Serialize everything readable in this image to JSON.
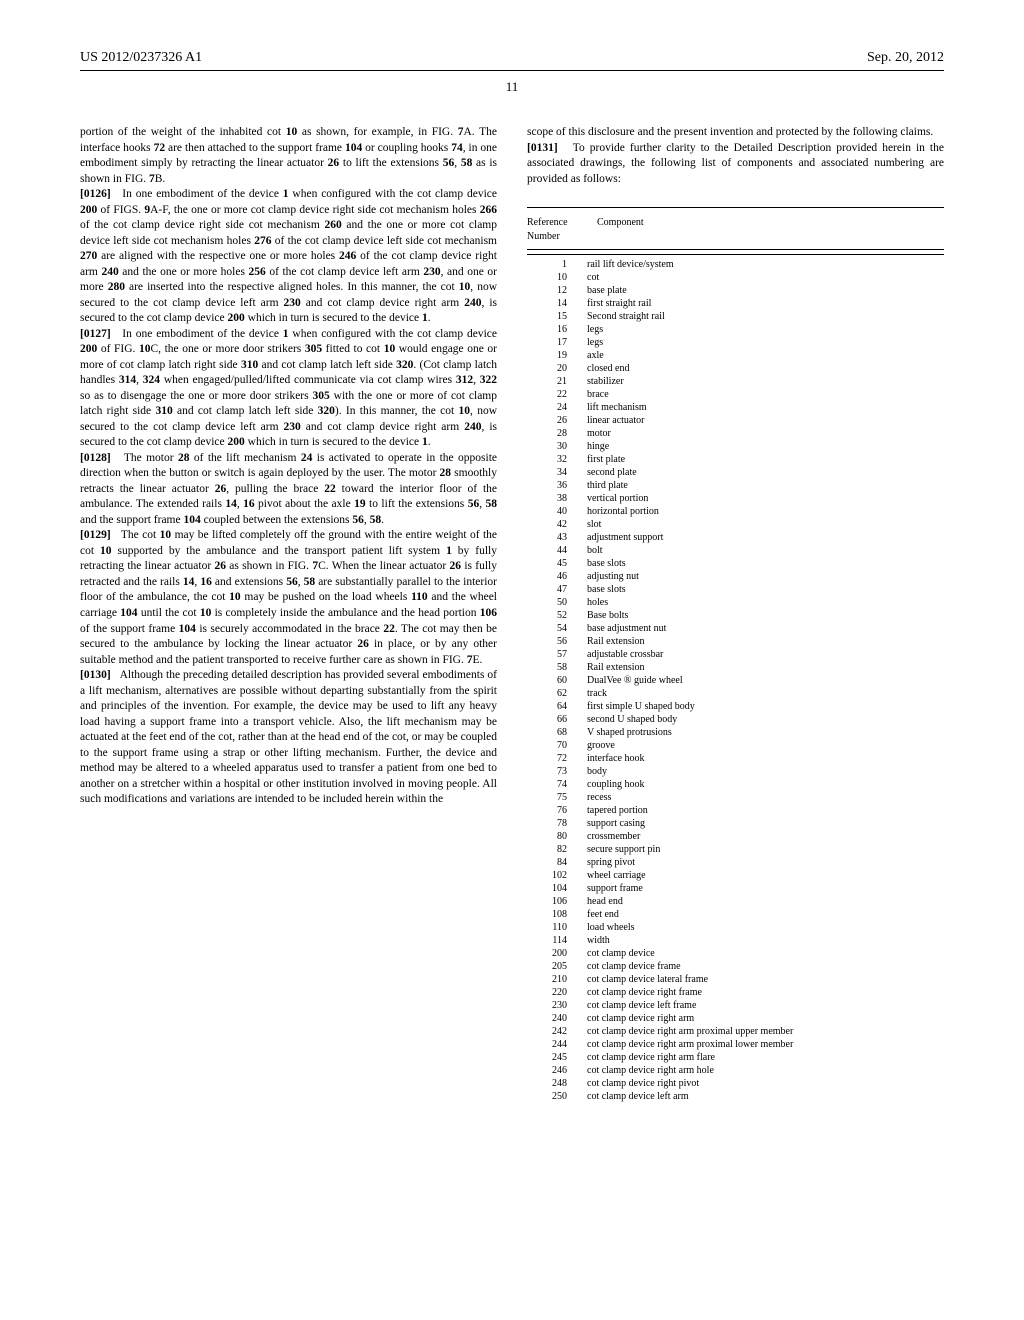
{
  "header": {
    "left": "US 2012/0237326 A1",
    "right": "Sep. 20, 2012"
  },
  "pageNumber": "11",
  "leftColumn": {
    "para0": "portion of the weight of the inhabited cot <b>10</b> as shown, for example, in FIG. <b>7</b>A. The interface hooks <b>72</b> are then attached to the support frame <b>104</b> or coupling hooks <b>74</b>, in one embodiment simply by retracting the linear actuator <b>26</b> to lift the extensions <b>56</b>, <b>58</b> as is shown in FIG. <b>7</b>B.",
    "para1": "<b>[0126]</b>&nbsp;&nbsp;&nbsp;In one embodiment of the device <b>1</b> when configured with the cot clamp device <b>200</b> of FIGS. <b>9</b>A-F, the one or more cot clamp device right side cot mechanism holes <b>266</b> of the cot clamp device right side cot mechanism <b>260</b> and the one or more cot clamp device left side cot mechanism holes <b>276</b> of the cot clamp device left side cot mechanism <b>270</b> are aligned with the respective one or more holes <b>246</b> of the cot clamp device right arm <b>240</b> and the one or more holes <b>256</b> of the cot clamp device left arm <b>230</b>, and one or more <b>280</b> are inserted into the respective aligned holes. In this manner, the cot <b>10</b>, now secured to the cot clamp device left arm <b>230</b> and cot clamp device right arm <b>240</b>, is secured to the cot clamp device <b>200</b> which in turn is secured to the device <b>1</b>.",
    "para2": "<b>[0127]</b>&nbsp;&nbsp;&nbsp;In one embodiment of the device <b>1</b> when configured with the cot clamp device <b>200</b> of FIG. <b>10</b>C, the one or more door strikers <b>305</b> fitted to cot <b>10</b> would engage one or more of cot clamp latch right side <b>310</b> and cot clamp latch left side <b>320</b>. (Cot clamp latch handles <b>314</b>, <b>324</b> when engaged/pulled/lifted communicate via cot clamp wires <b>312</b>, <b>322</b> so as to disengage the one or more door strikers <b>305</b> with the one or more of cot clamp latch right side <b>310</b> and cot clamp latch left side <b>320</b>). In this manner, the cot <b>10</b>, now secured to the cot clamp device left arm <b>230</b> and cot clamp device right arm <b>240</b>, is secured to the cot clamp device <b>200</b> which in turn is secured to the device <b>1</b>.",
    "para3": "<b>[0128]</b>&nbsp;&nbsp;&nbsp;The motor <b>28</b> of the lift mechanism <b>24</b> is activated to operate in the opposite direction when the button or switch is again deployed by the user. The motor <b>28</b> smoothly retracts the linear actuator <b>26</b>, pulling the brace <b>22</b> toward the interior floor of the ambulance. The extended rails <b>14</b>, <b>16</b> pivot about the axle <b>19</b> to lift the extensions <b>56</b>, <b>58</b> and the support frame <b>104</b> coupled between the extensions <b>56</b>, <b>58</b>.",
    "para4": "<b>[0129]</b>&nbsp;&nbsp;&nbsp;The cot <b>10</b> may be lifted completely off the ground with the entire weight of the cot <b>10</b> supported by the ambulance and the transport patient lift system <b>1</b> by fully retracting the linear actuator <b>26</b> as shown in FIG. <b>7</b>C. When the linear actuator <b>26</b> is fully retracted and the rails <b>14</b>, <b>16</b> and extensions <b>56</b>, <b>58</b> are substantially parallel to the interior floor of the ambulance, the cot <b>10</b> may be pushed on the load wheels <b>110</b> and the wheel carriage <b>104</b> until the cot <b>10</b> is completely inside the ambulance and the head portion <b>106</b> of the support frame <b>104</b> is securely accommodated in the brace <b>22</b>. The cot may then be secured to the ambulance by locking the linear actuator <b>26</b> in place, or by any other suitable method and the patient transported to receive further care as shown in FIG. <b>7</b>E.",
    "para5": "<b>[0130]</b>&nbsp;&nbsp;&nbsp;Although the preceding detailed description has provided several embodiments of a lift mechanism, alternatives are possible without departing substantially from the spirit and principles of the invention. For example, the device may be used to lift any heavy load having a support frame into a transport vehicle. Also, the lift mechanism may be actuated at the feet end of the cot, rather than at the head end of the cot, or may be coupled to the support frame using a strap or other lifting mechanism. Further, the device and method may be altered to a wheeled apparatus used to transfer a patient from one bed to another on a stretcher within a hospital or other institution involved in moving people. All such modifications and variations are intended to be included herein within the"
  },
  "rightColumn": {
    "para0": "scope of this disclosure and the present invention and protected by the following claims.",
    "para1": "<b>[0131]</b>&nbsp;&nbsp;&nbsp;To provide further clarity to the Detailed Description provided herein in the associated drawings, the following list of components and associated numbering are provided as follows:"
  },
  "refTable": {
    "headerCol1": "Reference\nNumber",
    "headerCol2": "Component",
    "rows": [
      {
        "num": "1",
        "comp": "rail lift device/system"
      },
      {
        "num": "10",
        "comp": "cot"
      },
      {
        "num": "12",
        "comp": "base plate"
      },
      {
        "num": "14",
        "comp": "first straight rail"
      },
      {
        "num": "15",
        "comp": "Second straight rail"
      },
      {
        "num": "16",
        "comp": "legs"
      },
      {
        "num": "17",
        "comp": "legs"
      },
      {
        "num": "19",
        "comp": "axle"
      },
      {
        "num": "20",
        "comp": "closed end"
      },
      {
        "num": "21",
        "comp": "stabilizer"
      },
      {
        "num": "22",
        "comp": "brace"
      },
      {
        "num": "24",
        "comp": "lift mechanism"
      },
      {
        "num": "26",
        "comp": "linear actuator"
      },
      {
        "num": "28",
        "comp": "motor"
      },
      {
        "num": "30",
        "comp": "hinge"
      },
      {
        "num": "32",
        "comp": "first plate"
      },
      {
        "num": "34",
        "comp": "second plate"
      },
      {
        "num": "36",
        "comp": "third plate"
      },
      {
        "num": "38",
        "comp": "vertical portion"
      },
      {
        "num": "40",
        "comp": "horizontal portion"
      },
      {
        "num": "42",
        "comp": "slot"
      },
      {
        "num": "43",
        "comp": "adjustment support"
      },
      {
        "num": "44",
        "comp": "bolt"
      },
      {
        "num": "45",
        "comp": "base slots"
      },
      {
        "num": "46",
        "comp": "adjusting nut"
      },
      {
        "num": "47",
        "comp": "base slots"
      },
      {
        "num": "50",
        "comp": "holes"
      },
      {
        "num": "52",
        "comp": "Base bolts"
      },
      {
        "num": "54",
        "comp": "base adjustment nut"
      },
      {
        "num": "56",
        "comp": "Rail extension"
      },
      {
        "num": "57",
        "comp": "adjustable crossbar"
      },
      {
        "num": "58",
        "comp": "Rail extension"
      },
      {
        "num": "60",
        "comp": "DualVee ® guide wheel"
      },
      {
        "num": "62",
        "comp": "track"
      },
      {
        "num": "64",
        "comp": "first simple U shaped body"
      },
      {
        "num": "66",
        "comp": "second U shaped body"
      },
      {
        "num": "68",
        "comp": "V shaped protrusions"
      },
      {
        "num": "70",
        "comp": "groove"
      },
      {
        "num": "72",
        "comp": "interface hook"
      },
      {
        "num": "73",
        "comp": "body"
      },
      {
        "num": "74",
        "comp": "coupling hook"
      },
      {
        "num": "75",
        "comp": "recess"
      },
      {
        "num": "76",
        "comp": "tapered portion"
      },
      {
        "num": "78",
        "comp": "support casing"
      },
      {
        "num": "80",
        "comp": "crossmember"
      },
      {
        "num": "82",
        "comp": "secure support pin"
      },
      {
        "num": "84",
        "comp": "spring pivot"
      },
      {
        "num": "102",
        "comp": "wheel carriage"
      },
      {
        "num": "104",
        "comp": "support frame"
      },
      {
        "num": "106",
        "comp": "head end"
      },
      {
        "num": "108",
        "comp": "feet end"
      },
      {
        "num": "110",
        "comp": "load wheels"
      },
      {
        "num": "114",
        "comp": "width"
      },
      {
        "num": "200",
        "comp": "cot clamp device"
      },
      {
        "num": "205",
        "comp": "cot clamp device frame"
      },
      {
        "num": "210",
        "comp": "cot clamp device lateral frame"
      },
      {
        "num": "220",
        "comp": "cot clamp device right frame"
      },
      {
        "num": "230",
        "comp": "cot clamp device left frame"
      },
      {
        "num": "240",
        "comp": "cot clamp device right arm"
      },
      {
        "num": "242",
        "comp": "cot clamp device right arm proximal upper member"
      },
      {
        "num": "244",
        "comp": "cot clamp device right arm proximal lower member"
      },
      {
        "num": "245",
        "comp": "cot clamp device right arm flare"
      },
      {
        "num": "246",
        "comp": "cot clamp device right arm hole"
      },
      {
        "num": "248",
        "comp": "cot clamp device right pivot"
      },
      {
        "num": "250",
        "comp": "cot clamp device left arm"
      }
    ]
  }
}
